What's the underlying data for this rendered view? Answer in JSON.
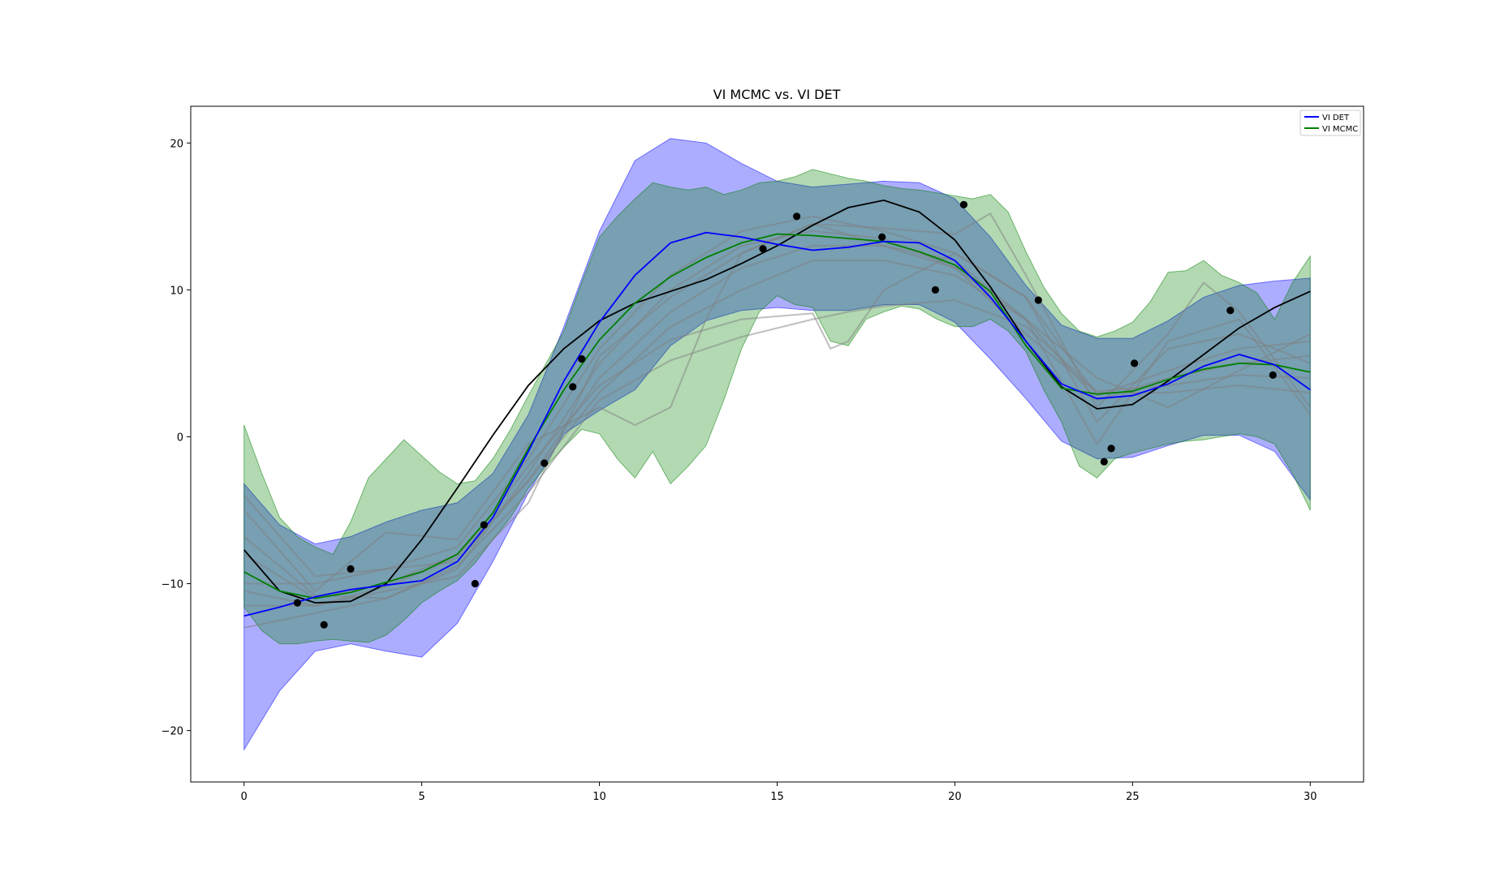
{
  "chart_data": {
    "type": "line",
    "title": "VI MCMC vs. VI DET",
    "xlabel": "",
    "ylabel": "",
    "xlim": [
      -1.5,
      31.5
    ],
    "ylim": [
      -23.5,
      22.5
    ],
    "xticks": [
      0,
      5,
      10,
      15,
      20,
      25,
      30
    ],
    "xtick_labels": [
      "0",
      "5",
      "10",
      "15",
      "20",
      "25",
      "30"
    ],
    "yticks": [
      -20,
      -10,
      0,
      10,
      20
    ],
    "ytick_labels": [
      "−20",
      "−10",
      "0",
      "10",
      "20"
    ],
    "grid": false,
    "legend_position": "top-right",
    "legend": [
      {
        "label": "VI DET",
        "color": "#0000ff"
      },
      {
        "label": "VI MCMC",
        "color": "#008000"
      }
    ],
    "colors": {
      "det_band": "#0000ff",
      "mcmc_band": "#008000",
      "samples": "#808080",
      "truth": "#000000",
      "points": "#000000"
    },
    "series": [
      {
        "name": "VI DET",
        "x": [
          0,
          1,
          2,
          3,
          4,
          5,
          6,
          7,
          8,
          9,
          10,
          11,
          12,
          13,
          14,
          15,
          16,
          17,
          18,
          19,
          20,
          21,
          22,
          23,
          24,
          25,
          26,
          27,
          28,
          29,
          30
        ],
        "values": [
          -12.2,
          -11.6,
          -10.9,
          -10.4,
          -10.1,
          -9.8,
          -8.5,
          -5.5,
          -1.0,
          3.8,
          7.8,
          11.0,
          13.2,
          13.9,
          13.6,
          13.1,
          12.7,
          12.9,
          13.3,
          13.2,
          12.0,
          9.5,
          6.5,
          3.6,
          2.6,
          2.8,
          3.6,
          4.8,
          5.6,
          4.9,
          3.2
        ]
      },
      {
        "name": "VI MCMC",
        "x": [
          0,
          1,
          2,
          3,
          4,
          5,
          6,
          7,
          8,
          9,
          10,
          11,
          12,
          13,
          14,
          15,
          16,
          17,
          18,
          19,
          20,
          21,
          22,
          23,
          24,
          25,
          26,
          27,
          28,
          29,
          30
        ],
        "values": [
          -9.2,
          -10.5,
          -11.0,
          -10.6,
          -9.9,
          -9.2,
          -8.0,
          -5.2,
          -0.8,
          3.2,
          6.6,
          9.1,
          10.9,
          12.2,
          13.2,
          13.8,
          13.7,
          13.5,
          13.3,
          12.6,
          11.7,
          9.9,
          6.2,
          3.3,
          2.9,
          3.1,
          3.9,
          4.6,
          5.0,
          4.9,
          4.4
        ]
      },
      {
        "name": "",
        "x": [
          0,
          1,
          2,
          3,
          4,
          5,
          6,
          7,
          8,
          9,
          10,
          11,
          12,
          13,
          14,
          15,
          16,
          17,
          18,
          19,
          20,
          21,
          22,
          23,
          24,
          25,
          26,
          27,
          28,
          29,
          30
        ],
        "values": [
          -7.7,
          -10.5,
          -11.3,
          -11.2,
          -10.0,
          -7.0,
          -3.5,
          0.1,
          3.5,
          6.0,
          7.9,
          9.1,
          9.9,
          10.7,
          11.8,
          13.0,
          14.4,
          15.6,
          16.1,
          15.3,
          13.4,
          10.2,
          6.5,
          3.4,
          1.9,
          2.2,
          3.8,
          5.6,
          7.4,
          8.8,
          9.9
        ]
      }
    ],
    "bands": [
      {
        "name": "",
        "x": [
          0,
          1,
          2,
          3,
          4,
          5,
          6,
          7,
          8,
          9,
          10,
          11,
          12,
          13,
          14,
          15,
          16,
          17,
          18,
          19,
          20,
          21,
          22,
          23,
          24,
          25,
          26,
          27,
          28,
          29,
          30
        ],
        "upper": [
          -3.2,
          -6.0,
          -7.3,
          -6.8,
          -5.8,
          -5.0,
          -4.5,
          -2.5,
          1.5,
          7.5,
          14.0,
          18.8,
          20.3,
          20.0,
          18.6,
          17.4,
          17.0,
          17.2,
          17.4,
          17.3,
          16.2,
          13.6,
          10.3,
          7.6,
          6.7,
          6.7,
          7.9,
          9.5,
          10.3,
          10.6,
          10.8
        ],
        "lower": [
          -21.3,
          -17.3,
          -14.6,
          -14.1,
          -14.6,
          -15.0,
          -12.7,
          -8.5,
          -3.8,
          0.2,
          1.8,
          3.2,
          6.2,
          7.9,
          8.6,
          8.8,
          8.6,
          8.6,
          9.0,
          9.0,
          7.8,
          5.3,
          2.6,
          -0.3,
          -1.5,
          -1.4,
          -0.6,
          0.1,
          0.1,
          -1.0,
          -4.3
        ]
      },
      {
        "name": "",
        "x": [
          0,
          0.5,
          1,
          1.5,
          2,
          2.5,
          3,
          3.5,
          4,
          4.5,
          5,
          5.5,
          6,
          6.5,
          7,
          7.5,
          8,
          8.5,
          9,
          9.5,
          10,
          10.5,
          11,
          11.5,
          12,
          12.5,
          13,
          13.5,
          14,
          14.5,
          15,
          15.5,
          16,
          16.5,
          17,
          17.5,
          18,
          18.5,
          19,
          19.5,
          20,
          20.5,
          21,
          21.5,
          22,
          22.5,
          23,
          23.5,
          24,
          24.5,
          25,
          25.5,
          26,
          26.5,
          27,
          27.5,
          28,
          28.5,
          29,
          29.5,
          30
        ],
        "upper": [
          0.8,
          -2.5,
          -5.5,
          -6.8,
          -7.5,
          -8.0,
          -5.8,
          -2.8,
          -1.5,
          -0.2,
          -1.3,
          -2.4,
          -3.2,
          -3.0,
          -1.5,
          0.5,
          2.8,
          5.0,
          7.2,
          10.5,
          13.6,
          15.0,
          16.2,
          17.3,
          17.0,
          16.8,
          17.0,
          16.5,
          16.8,
          17.3,
          17.4,
          17.7,
          18.2,
          17.9,
          17.6,
          17.4,
          17.1,
          16.9,
          16.8,
          16.6,
          16.4,
          16.2,
          16.5,
          15.3,
          12.6,
          10.2,
          8.4,
          7.2,
          6.8,
          7.2,
          7.8,
          9.2,
          11.2,
          11.3,
          12.0,
          11.0,
          10.5,
          9.8,
          8.0,
          10.5,
          12.3
        ],
        "lower": [
          -11.6,
          -13.2,
          -14.1,
          -14.1,
          -13.9,
          -13.8,
          -13.9,
          -14.0,
          -13.5,
          -12.5,
          -11.3,
          -10.5,
          -9.8,
          -8.6,
          -7.0,
          -5.5,
          -3.5,
          -2.0,
          -0.7,
          0.5,
          0.2,
          -1.5,
          -2.8,
          -1.0,
          -3.2,
          -2.0,
          -0.6,
          2.5,
          6.0,
          8.5,
          9.6,
          9.0,
          8.8,
          6.5,
          6.2,
          8.0,
          8.5,
          8.9,
          8.7,
          8.0,
          7.5,
          7.5,
          8.0,
          7.2,
          5.8,
          3.2,
          1.0,
          -2.0,
          -2.8,
          -1.5,
          -1.1,
          -0.8,
          -0.5,
          -0.3,
          -0.2,
          0.0,
          0.2,
          0.0,
          -0.5,
          -2.5,
          -5.0
        ]
      }
    ],
    "scatter": {
      "x": [
        1.5,
        2.25,
        3.0,
        6.5,
        6.75,
        8.45,
        9.25,
        9.5,
        14.6,
        15.55,
        17.95,
        19.45,
        20.25,
        22.35,
        24.2,
        24.4,
        25.05,
        27.75,
        28.95
      ],
      "y": [
        -11.3,
        -12.8,
        -9.0,
        -10.0,
        -6.0,
        -1.8,
        3.4,
        5.3,
        12.8,
        15.0,
        13.6,
        10.0,
        15.8,
        9.3,
        -1.7,
        -0.8,
        5.0,
        8.6,
        4.2
      ]
    },
    "sample_curves": [
      {
        "name": "",
        "x": [
          0,
          2,
          4,
          6,
          8,
          10,
          12,
          14,
          16,
          17,
          18,
          20,
          22,
          24,
          26,
          28,
          30
        ],
        "values": [
          -6.8,
          -10.8,
          -11.0,
          -8.8,
          -3.8,
          2.5,
          5.2,
          6.8,
          8.0,
          8.5,
          8.9,
          9.3,
          7.5,
          3.1,
          3.5,
          4.2,
          4.0
        ]
      },
      {
        "name": "",
        "x": [
          0,
          2,
          4,
          6,
          8,
          10,
          12,
          14,
          16,
          16.5,
          17,
          18,
          20,
          22,
          24,
          26,
          28,
          30
        ],
        "values": [
          -11.5,
          -11.5,
          -10.2,
          -8.2,
          -2.0,
          3.5,
          6.6,
          8.0,
          8.4,
          6.0,
          6.5,
          10.0,
          12.5,
          9.5,
          2.8,
          4.5,
          6.0,
          6.5
        ]
      },
      {
        "name": "",
        "x": [
          0,
          2,
          4,
          6,
          8,
          10,
          11,
          12,
          13,
          14,
          16,
          18,
          20,
          22,
          24,
          26,
          28,
          30
        ],
        "values": [
          -5.0,
          -10.5,
          -6.5,
          -7.0,
          -0.5,
          2.0,
          0.8,
          2.0,
          8.0,
          12.5,
          14.5,
          13.0,
          11.5,
          8.0,
          -0.5,
          6.5,
          8.0,
          1.5
        ]
      },
      {
        "name": "",
        "x": [
          0,
          2,
          4,
          6,
          8,
          10,
          12,
          14,
          16,
          18,
          20,
          21,
          22,
          24,
          26,
          27,
          28,
          30
        ],
        "values": [
          -10.5,
          -11.5,
          -10.5,
          -9.5,
          -4.5,
          5.5,
          9.5,
          12.5,
          14.5,
          14.2,
          13.8,
          15.2,
          11.0,
          2.0,
          7.0,
          10.5,
          8.5,
          2.0
        ]
      },
      {
        "name": "",
        "x": [
          0,
          2,
          4,
          6,
          8,
          10,
          12,
          14,
          16,
          18,
          20,
          22,
          24,
          26,
          28,
          30
        ],
        "values": [
          -8.0,
          -11.0,
          -10.0,
          -8.0,
          -3.0,
          4.0,
          8.5,
          11.5,
          13.0,
          13.0,
          12.0,
          8.0,
          2.5,
          4.0,
          5.0,
          5.5
        ]
      },
      {
        "name": "",
        "x": [
          0,
          2,
          4,
          6,
          8,
          10,
          12,
          14,
          16,
          18,
          20,
          22,
          24,
          26,
          28,
          30
        ],
        "values": [
          -13.0,
          -12.0,
          -11.0,
          -9.0,
          -2.5,
          5.0,
          10.0,
          13.0,
          14.0,
          13.5,
          11.5,
          7.0,
          3.0,
          3.0,
          3.5,
          3.0
        ]
      },
      {
        "name": "",
        "x": [
          0,
          2,
          4,
          6,
          8,
          10,
          12,
          14,
          16,
          18,
          20,
          22,
          24,
          26,
          28,
          30
        ],
        "values": [
          -4.0,
          -9.5,
          -9.0,
          -7.5,
          -1.5,
          6.0,
          11.0,
          14.0,
          15.0,
          14.0,
          12.5,
          9.5,
          1.0,
          6.0,
          7.0,
          5.0
        ]
      },
      {
        "name": "",
        "x": [
          0,
          2,
          4,
          6,
          8,
          10,
          12,
          14,
          16,
          18,
          20,
          22,
          24,
          26,
          28,
          30
        ],
        "values": [
          -10.0,
          -10.0,
          -9.0,
          -8.5,
          -3.0,
          3.0,
          7.5,
          10.0,
          12.0,
          12.0,
          11.0,
          8.0,
          4.0,
          2.0,
          4.5,
          7.0
        ]
      }
    ]
  }
}
